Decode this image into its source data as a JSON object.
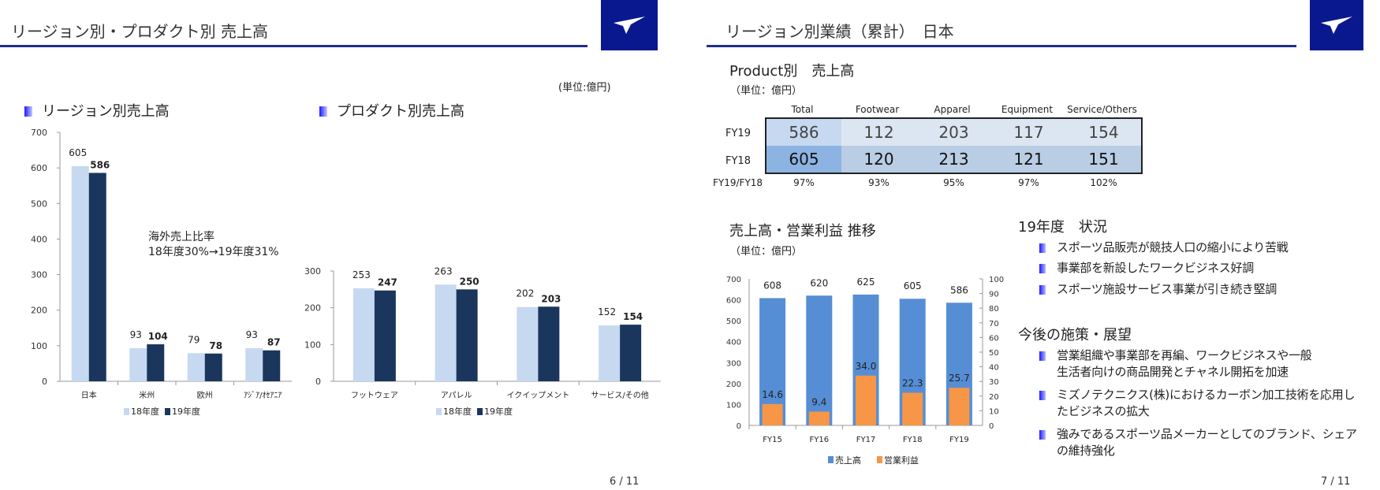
{
  "slide6": {
    "title": "リージョン別・プロダクト別 売上高",
    "unit": "(単位:億円)",
    "region_heading": "リージョン別売上高",
    "product_heading": "プロダクト別売上高",
    "annotation_line1": "海外売上比率",
    "annotation_line2": "18年度30%→19年度31%",
    "page": "6 / 11"
  },
  "slide7": {
    "title": "リージョン別業績（累計）　日本",
    "product_heading": "Product別　売上高",
    "unit": "（単位：億円）",
    "table": {
      "columns": [
        "Total",
        "Footwear",
        "Apparel",
        "Equipment",
        "Service/Others"
      ],
      "rows": [
        {
          "label": "FY19",
          "values": [
            "586",
            "112",
            "203",
            "117",
            "154"
          ]
        },
        {
          "label": "FY18",
          "values": [
            "605",
            "120",
            "213",
            "121",
            "151"
          ]
        }
      ],
      "ratio_label": "FY19/FY18",
      "ratios": [
        "97%",
        "93%",
        "95%",
        "97%",
        "102%"
      ]
    },
    "trend_heading": "売上高・営業利益 推移",
    "trend_unit": "（単位：億円）",
    "status_heading": "19年度　状況",
    "status_items": [
      "スポーツ品販売が競技人口の縮小により苦戦",
      "事業部を新設したワークビジネス好調",
      "スポーツ施設サービス事業が引き続き堅調"
    ],
    "outlook_heading": "今後の施策・展望",
    "outlook_items": [
      [
        "営業組織や事業部を再編、ワークビジネスや一般",
        "生活者向けの商品開発とチャネル開拓を加速"
      ],
      [
        "ミズノテクニクス(株)におけるカーボン加工技術を応用し",
        "たビジネスの拡大"
      ],
      [
        "強みであるスポーツ品メーカーとしてのブランド、シェア",
        "の維持強化"
      ]
    ],
    "page": "7 / 11"
  },
  "colors": {
    "fy18": "#c6d9f1",
    "fy19": "#1b365d",
    "sales": "#558ed5",
    "profit": "#f79646",
    "logo": "#0a1890"
  },
  "chart_data": [
    {
      "type": "bar",
      "title": "リージョン別売上高",
      "categories": [
        "日本",
        "米州",
        "欧州",
        "ｱｼﾞｱ/ｵｾｱﾆｱ"
      ],
      "series": [
        {
          "name": "18年度",
          "values": [
            605,
            93,
            79,
            93
          ]
        },
        {
          "name": "19年度",
          "values": [
            586,
            104,
            78,
            87
          ]
        }
      ],
      "ylim": [
        0,
        700
      ],
      "yticks": [
        0,
        100,
        200,
        300,
        400,
        500,
        600,
        700
      ],
      "legend": "bottom"
    },
    {
      "type": "bar",
      "title": "プロダクト別売上高",
      "categories": [
        "フットウェア",
        "アパレル",
        "イクイップメント",
        "サービス/その他"
      ],
      "series": [
        {
          "name": "18年度",
          "values": [
            253,
            263,
            202,
            152
          ]
        },
        {
          "name": "19年度",
          "values": [
            247,
            250,
            203,
            154
          ]
        }
      ],
      "ylim": [
        0,
        300
      ],
      "yticks": [
        0,
        100,
        200,
        300
      ],
      "legend": "bottom"
    },
    {
      "type": "bar",
      "title": "売上高・営業利益 推移",
      "categories": [
        "FY15",
        "FY16",
        "FY17",
        "FY18",
        "FY19"
      ],
      "series": [
        {
          "name": "売上高",
          "values": [
            608,
            620,
            625,
            605,
            586
          ],
          "labels": [
            "608",
            "620",
            "625",
            "605",
            "586"
          ],
          "axis": "left"
        },
        {
          "name": "営業利益",
          "values": [
            14.6,
            9.4,
            34.0,
            22.3,
            25.7
          ],
          "labels": [
            "14.6",
            "9.4",
            "34.0",
            "22.3",
            "25.7"
          ],
          "axis": "right"
        }
      ],
      "ylim": [
        0,
        700
      ],
      "y2lim": [
        0,
        100
      ],
      "yticks": [
        0,
        100,
        200,
        300,
        400,
        500,
        600,
        700
      ],
      "y2ticks": [
        0,
        10,
        20,
        30,
        40,
        50,
        60,
        70,
        80,
        90,
        100
      ],
      "legend": "bottom"
    }
  ]
}
